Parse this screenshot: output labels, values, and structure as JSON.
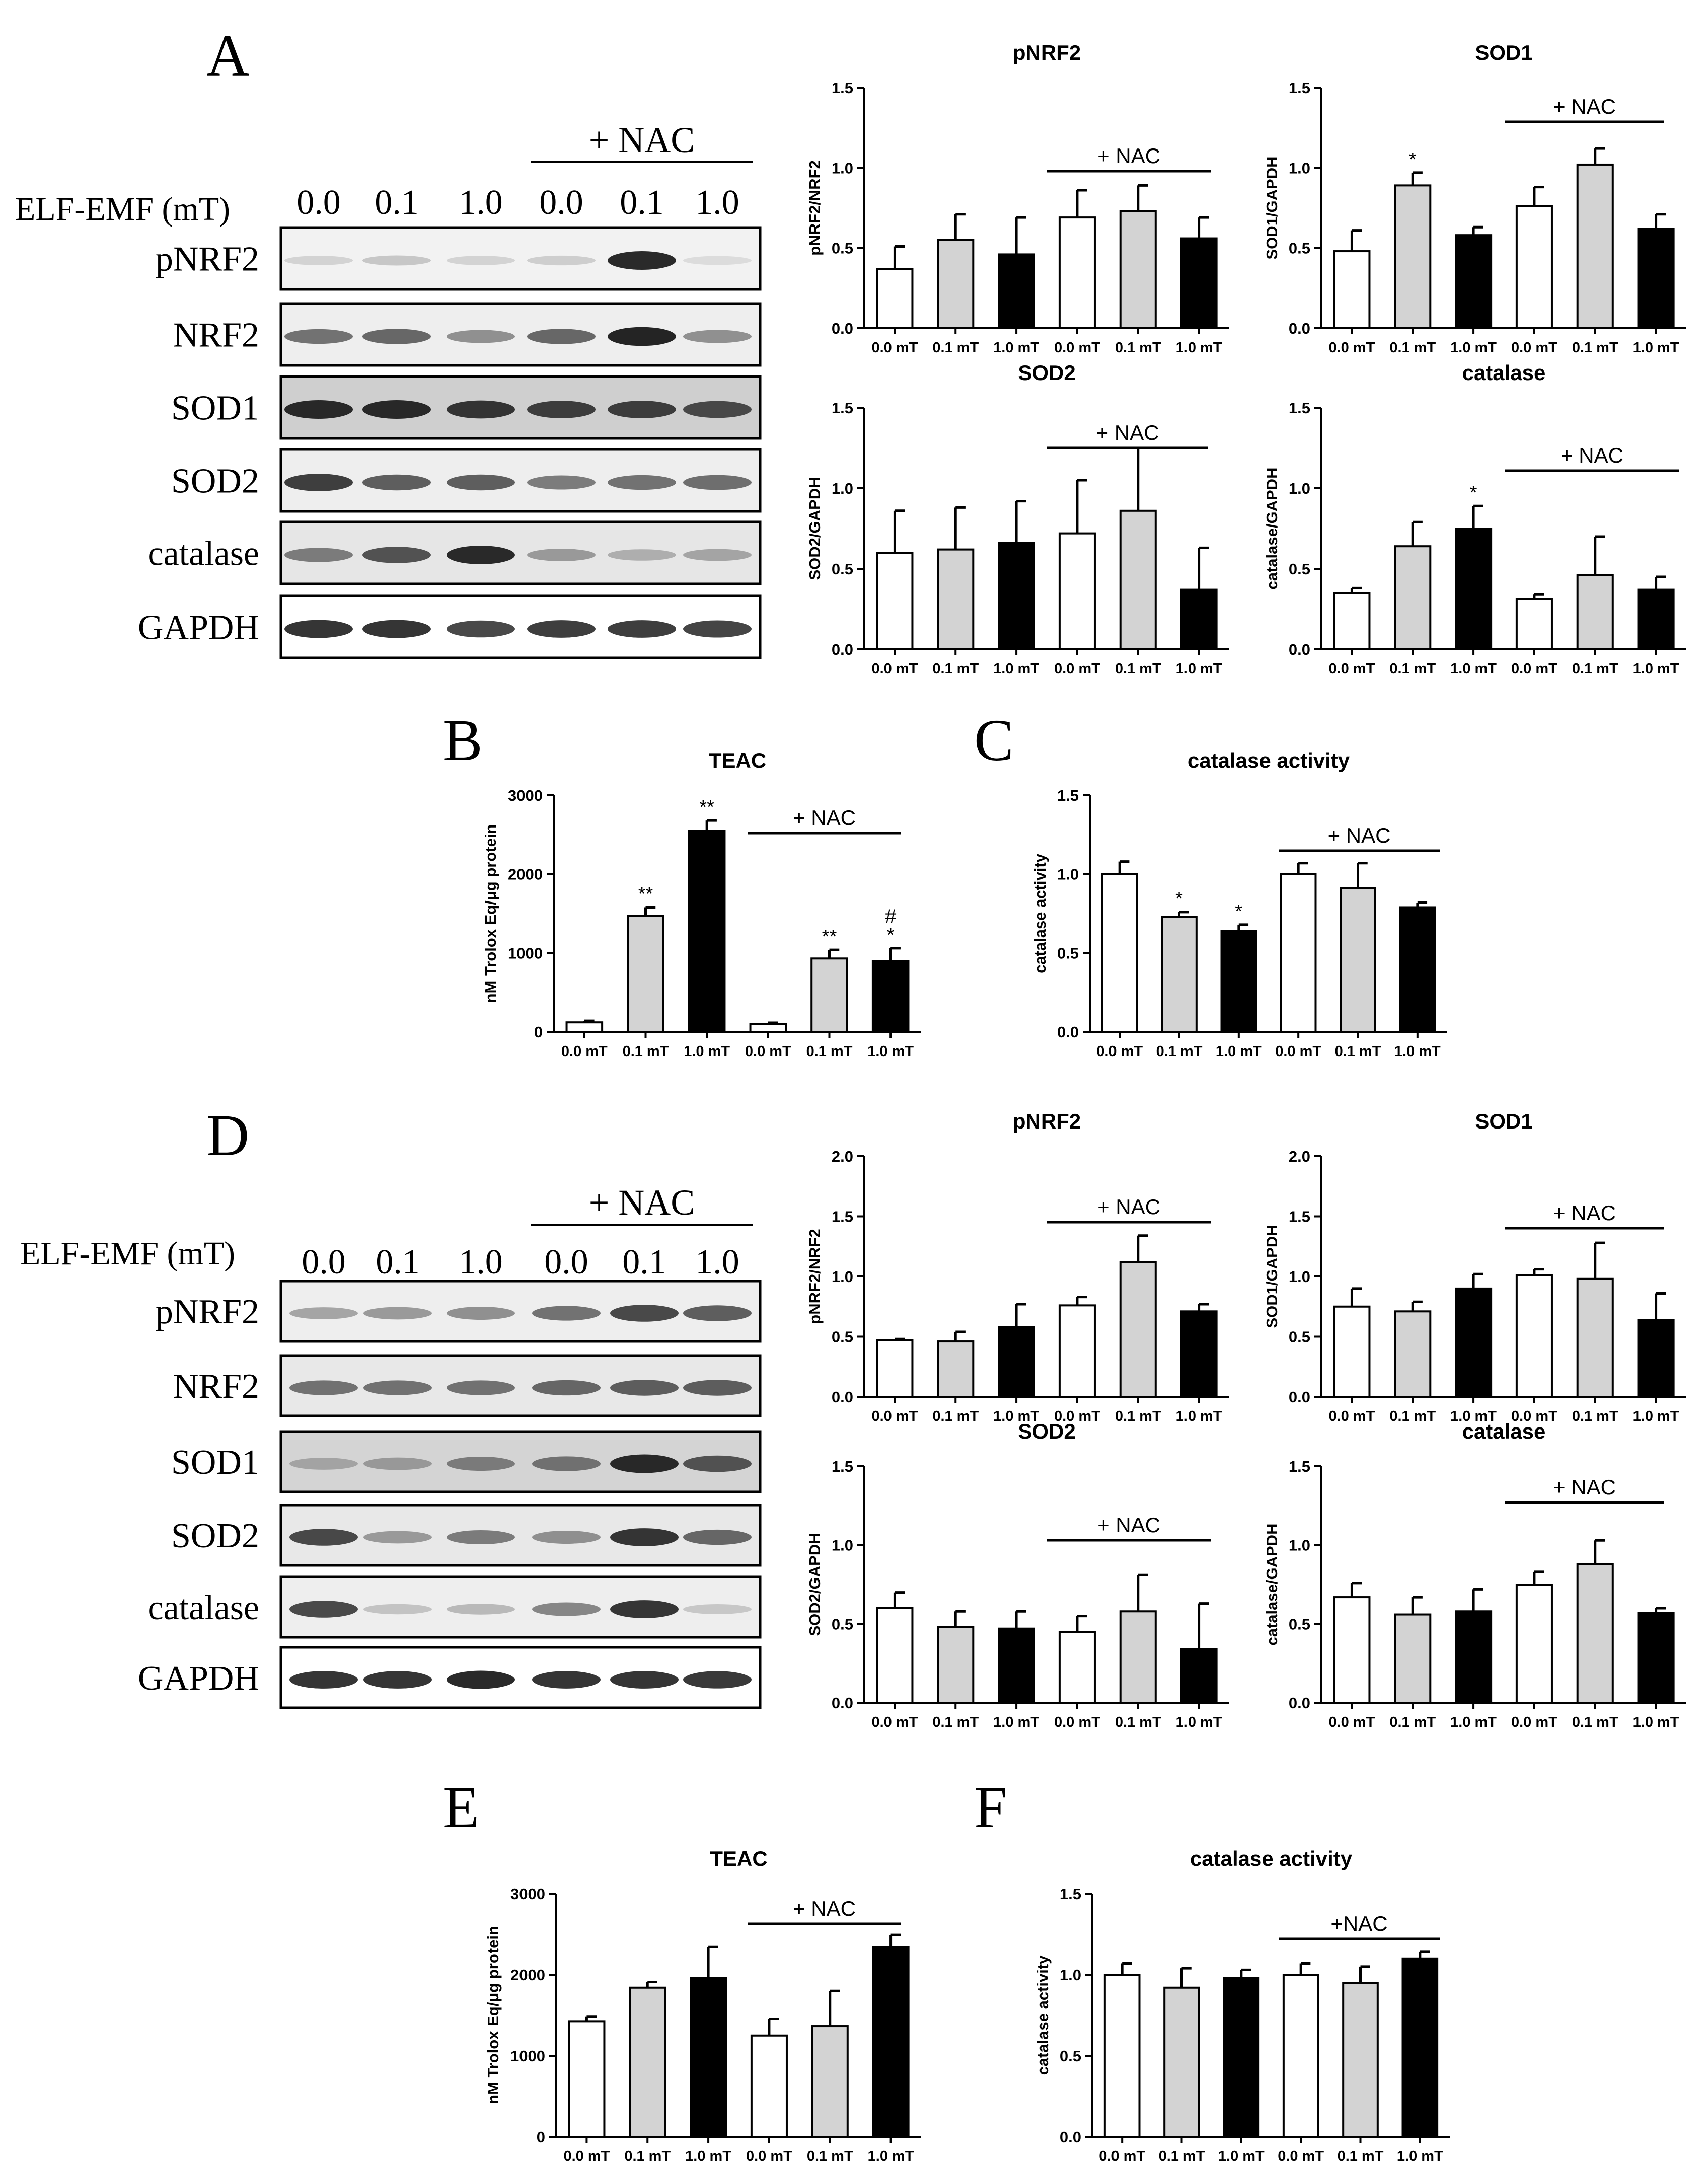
{
  "labels": {
    "x_categories": [
      "0.0 mT",
      "0.1 mT",
      "1.0 mT",
      "0.0 mT",
      "0.1 mT",
      "1.0 mT"
    ],
    "nac": "+ NAC",
    "nac_compact": "+NAC",
    "single_star": "*",
    "double_star": "**",
    "hash": "#"
  },
  "panels": [
    {
      "letter": "A"
    },
    {
      "letter": "B"
    },
    {
      "letter": "C"
    },
    {
      "letter": "D"
    },
    {
      "letter": "E"
    },
    {
      "letter": "F"
    }
  ],
  "blots": [
    {
      "id": "A",
      "dose_label": "ELF-EMF (mT)",
      "lanes": [
        "0.0",
        "0.1",
        "1.0",
        "0.0",
        "0.1",
        "1.0"
      ],
      "nac_label": "+ NAC",
      "rows": [
        {
          "label": "pNRF2",
          "intensity": [
            0.12,
            0.18,
            0.12,
            0.15,
            0.95,
            0.08
          ],
          "bg": "#f2f2f2"
        },
        {
          "label": "NRF2",
          "intensity": [
            0.6,
            0.65,
            0.45,
            0.65,
            0.98,
            0.45
          ],
          "bg": "#eeeeee"
        },
        {
          "label": "SOD1",
          "intensity": [
            0.95,
            0.95,
            0.9,
            0.85,
            0.85,
            0.8
          ],
          "bg": "#cfcfcf"
        },
        {
          "label": "SOD2",
          "intensity": [
            0.85,
            0.7,
            0.7,
            0.55,
            0.6,
            0.62
          ],
          "bg": "#eeeeee"
        },
        {
          "label": "catalase",
          "intensity": [
            0.55,
            0.75,
            0.95,
            0.4,
            0.3,
            0.35
          ],
          "bg": "#e6e6e6"
        },
        {
          "label": "GAPDH",
          "intensity": [
            0.9,
            0.9,
            0.8,
            0.85,
            0.85,
            0.82
          ],
          "bg": "#ffffff"
        }
      ]
    },
    {
      "id": "D",
      "dose_label": "ELF-EMF (mT)",
      "lanes": [
        "0.0",
        "0.1",
        "1.0",
        "0.0",
        "0.1",
        "1.0"
      ],
      "nac_label": "+ NAC",
      "rows": [
        {
          "label": "pNRF2",
          "intensity": [
            0.35,
            0.4,
            0.45,
            0.6,
            0.8,
            0.7
          ],
          "bg": "#eeeeee"
        },
        {
          "label": "NRF2",
          "intensity": [
            0.6,
            0.6,
            0.6,
            0.65,
            0.7,
            0.7
          ],
          "bg": "#e8e8e8"
        },
        {
          "label": "SOD1",
          "intensity": [
            0.35,
            0.4,
            0.55,
            0.6,
            0.95,
            0.75
          ],
          "bg": "#d4d4d4"
        },
        {
          "label": "SOD2",
          "intensity": [
            0.8,
            0.4,
            0.55,
            0.45,
            0.9,
            0.65
          ],
          "bg": "#e8e8e8"
        },
        {
          "label": "catalase",
          "intensity": [
            0.8,
            0.2,
            0.25,
            0.5,
            0.9,
            0.18
          ],
          "bg": "#eeeeee"
        },
        {
          "label": "GAPDH",
          "intensity": [
            0.9,
            0.9,
            0.95,
            0.9,
            0.9,
            0.88
          ],
          "bg": "#ffffff"
        }
      ]
    }
  ],
  "colors": {
    "fills": [
      "#ffffff",
      "#d3d3d3",
      "#000000",
      "#ffffff",
      "#d3d3d3",
      "#000000"
    ],
    "edge": "#000000"
  },
  "chart_data": [
    {
      "id": "A-pNRF2",
      "type": "bar",
      "title": "pNRF2",
      "ylabel": "pNRF2/NRF2",
      "ylim": [
        0,
        1.5
      ],
      "yticks": [
        "0.0",
        "0.5",
        "1.0",
        "1.5"
      ],
      "values": [
        0.37,
        0.55,
        0.46,
        0.69,
        0.73,
        0.56
      ],
      "errors": [
        0.14,
        0.16,
        0.23,
        0.17,
        0.16,
        0.13
      ],
      "marks": [
        "",
        "",
        "",
        "",
        "",
        ""
      ],
      "nac_text": "+  NAC"
    },
    {
      "id": "A-SOD1",
      "type": "bar",
      "title": "SOD1",
      "ylabel": "SOD1/GAPDH",
      "ylim": [
        0,
        1.5
      ],
      "yticks": [
        "0.0",
        "0.5",
        "1.0",
        "1.5"
      ],
      "values": [
        0.48,
        0.89,
        0.58,
        0.76,
        1.02,
        0.62
      ],
      "errors": [
        0.13,
        0.08,
        0.05,
        0.12,
        0.1,
        0.09
      ],
      "marks": [
        "",
        "*",
        "",
        "",
        "",
        ""
      ],
      "nac_text": "+ NAC"
    },
    {
      "id": "A-SOD2",
      "type": "bar",
      "title": "SOD2",
      "ylabel": "SOD2/GAPDH",
      "ylim": [
        0,
        1.5
      ],
      "yticks": [
        "0.0",
        "0.5",
        "1.0",
        "1.5"
      ],
      "values": [
        0.6,
        0.62,
        0.66,
        0.72,
        0.86,
        0.37
      ],
      "errors": [
        0.26,
        0.26,
        0.26,
        0.33,
        0.39,
        0.26
      ],
      "marks": [
        "",
        "",
        "",
        "",
        "",
        ""
      ],
      "nac_text": "+ NAC"
    },
    {
      "id": "A-catalase",
      "type": "bar",
      "title": "catalase",
      "ylabel": "catalase/GAPDH",
      "ylim": [
        0,
        1.5
      ],
      "yticks": [
        "0.0",
        "0.5",
        "1.0",
        "1.5"
      ],
      "values": [
        0.35,
        0.64,
        0.75,
        0.31,
        0.46,
        0.37
      ],
      "errors": [
        0.03,
        0.15,
        0.14,
        0.03,
        0.24,
        0.08
      ],
      "marks": [
        "",
        "",
        "*",
        "",
        "",
        ""
      ],
      "nac_text": "+ NAC"
    },
    {
      "id": "B-TEAC",
      "type": "bar",
      "title": "TEAC",
      "ylabel": "nM Trolox Eq/μg protein",
      "ylim": [
        0,
        3000
      ],
      "yticks": [
        "0",
        "1000",
        "2000",
        "3000"
      ],
      "values": [
        120,
        1470,
        2550,
        100,
        930,
        900
      ],
      "errors": [
        20,
        110,
        130,
        15,
        110,
        160
      ],
      "marks": [
        "",
        "**",
        "**",
        "",
        "**",
        "#\n*"
      ],
      "nac_text": "+ NAC"
    },
    {
      "id": "C-catalase-activity",
      "type": "bar",
      "title": "catalase activity",
      "ylabel": "catalase activity",
      "ylim": [
        0,
        1.5
      ],
      "yticks": [
        "0.0",
        "0.5",
        "1.0",
        "1.5"
      ],
      "values": [
        1.0,
        0.73,
        0.64,
        1.0,
        0.91,
        0.79
      ],
      "errors": [
        0.08,
        0.03,
        0.04,
        0.07,
        0.16,
        0.03
      ],
      "marks": [
        "",
        "*",
        "*",
        "",
        "",
        ""
      ],
      "nac_text": "+ NAC"
    },
    {
      "id": "D-pNRF2",
      "type": "bar",
      "title": "pNRF2",
      "ylabel": "pNRF2/NRF2",
      "ylim": [
        0,
        2.0
      ],
      "yticks": [
        "0.0",
        "0.5",
        "1.0",
        "1.5",
        "2.0"
      ],
      "values": [
        0.47,
        0.46,
        0.58,
        0.76,
        1.12,
        0.71
      ],
      "errors": [
        0.01,
        0.08,
        0.19,
        0.07,
        0.22,
        0.06
      ],
      "marks": [
        "",
        "",
        "",
        "",
        "",
        ""
      ],
      "nac_text": "+  NAC"
    },
    {
      "id": "D-SOD1",
      "type": "bar",
      "title": "SOD1",
      "ylabel": "SOD1/GAPDH",
      "ylim": [
        0,
        2.0
      ],
      "yticks": [
        "0.0",
        "0.5",
        "1.0",
        "1.5",
        "2.0"
      ],
      "values": [
        0.75,
        0.71,
        0.9,
        1.01,
        0.98,
        0.64
      ],
      "errors": [
        0.15,
        0.08,
        0.12,
        0.05,
        0.3,
        0.22
      ],
      "marks": [
        "",
        "",
        "",
        "",
        "",
        ""
      ],
      "nac_text": "+ NAC"
    },
    {
      "id": "D-SOD2",
      "type": "bar",
      "title": "SOD2",
      "ylabel": "SOD2/GAPDH",
      "ylim": [
        0,
        1.5
      ],
      "yticks": [
        "0.0",
        "0.5",
        "1.0",
        "1.5"
      ],
      "values": [
        0.6,
        0.48,
        0.47,
        0.45,
        0.58,
        0.34
      ],
      "errors": [
        0.1,
        0.1,
        0.11,
        0.1,
        0.23,
        0.29
      ],
      "marks": [
        "",
        "",
        "",
        "",
        "",
        ""
      ],
      "nac_text": "+ NAC"
    },
    {
      "id": "D-catalase",
      "type": "bar",
      "title": "catalase",
      "ylabel": "catalase/GAPDH",
      "ylim": [
        0,
        1.5
      ],
      "yticks": [
        "0.0",
        "0.5",
        "1.0",
        "1.5"
      ],
      "values": [
        0.67,
        0.56,
        0.58,
        0.75,
        0.88,
        0.57
      ],
      "errors": [
        0.09,
        0.11,
        0.14,
        0.08,
        0.15,
        0.03
      ],
      "marks": [
        "",
        "",
        "",
        "",
        "",
        ""
      ],
      "nac_text": "+  NAC"
    },
    {
      "id": "E-TEAC",
      "type": "bar",
      "title": "TEAC",
      "ylabel": "nM Trolox Eq/μg protein",
      "ylim": [
        0,
        3000
      ],
      "yticks": [
        "0",
        "1000",
        "2000",
        "3000"
      ],
      "values": [
        1420,
        1840,
        1960,
        1250,
        1360,
        2340
      ],
      "errors": [
        60,
        70,
        380,
        200,
        440,
        150
      ],
      "marks": [
        "",
        "",
        "",
        "",
        "",
        ""
      ],
      "nac_text": "+ NAC"
    },
    {
      "id": "F-catalase-activity",
      "type": "bar",
      "title": "catalase activity",
      "ylabel": "catalase activity",
      "ylim": [
        0,
        1.5
      ],
      "yticks": [
        "0.0",
        "0.5",
        "1.0",
        "1.5"
      ],
      "values": [
        1.0,
        0.92,
        0.98,
        1.0,
        0.95,
        1.1
      ],
      "errors": [
        0.07,
        0.12,
        0.05,
        0.07,
        0.1,
        0.04
      ],
      "marks": [
        "",
        "",
        "",
        "",
        "",
        ""
      ],
      "nac_text": "+NAC"
    }
  ]
}
